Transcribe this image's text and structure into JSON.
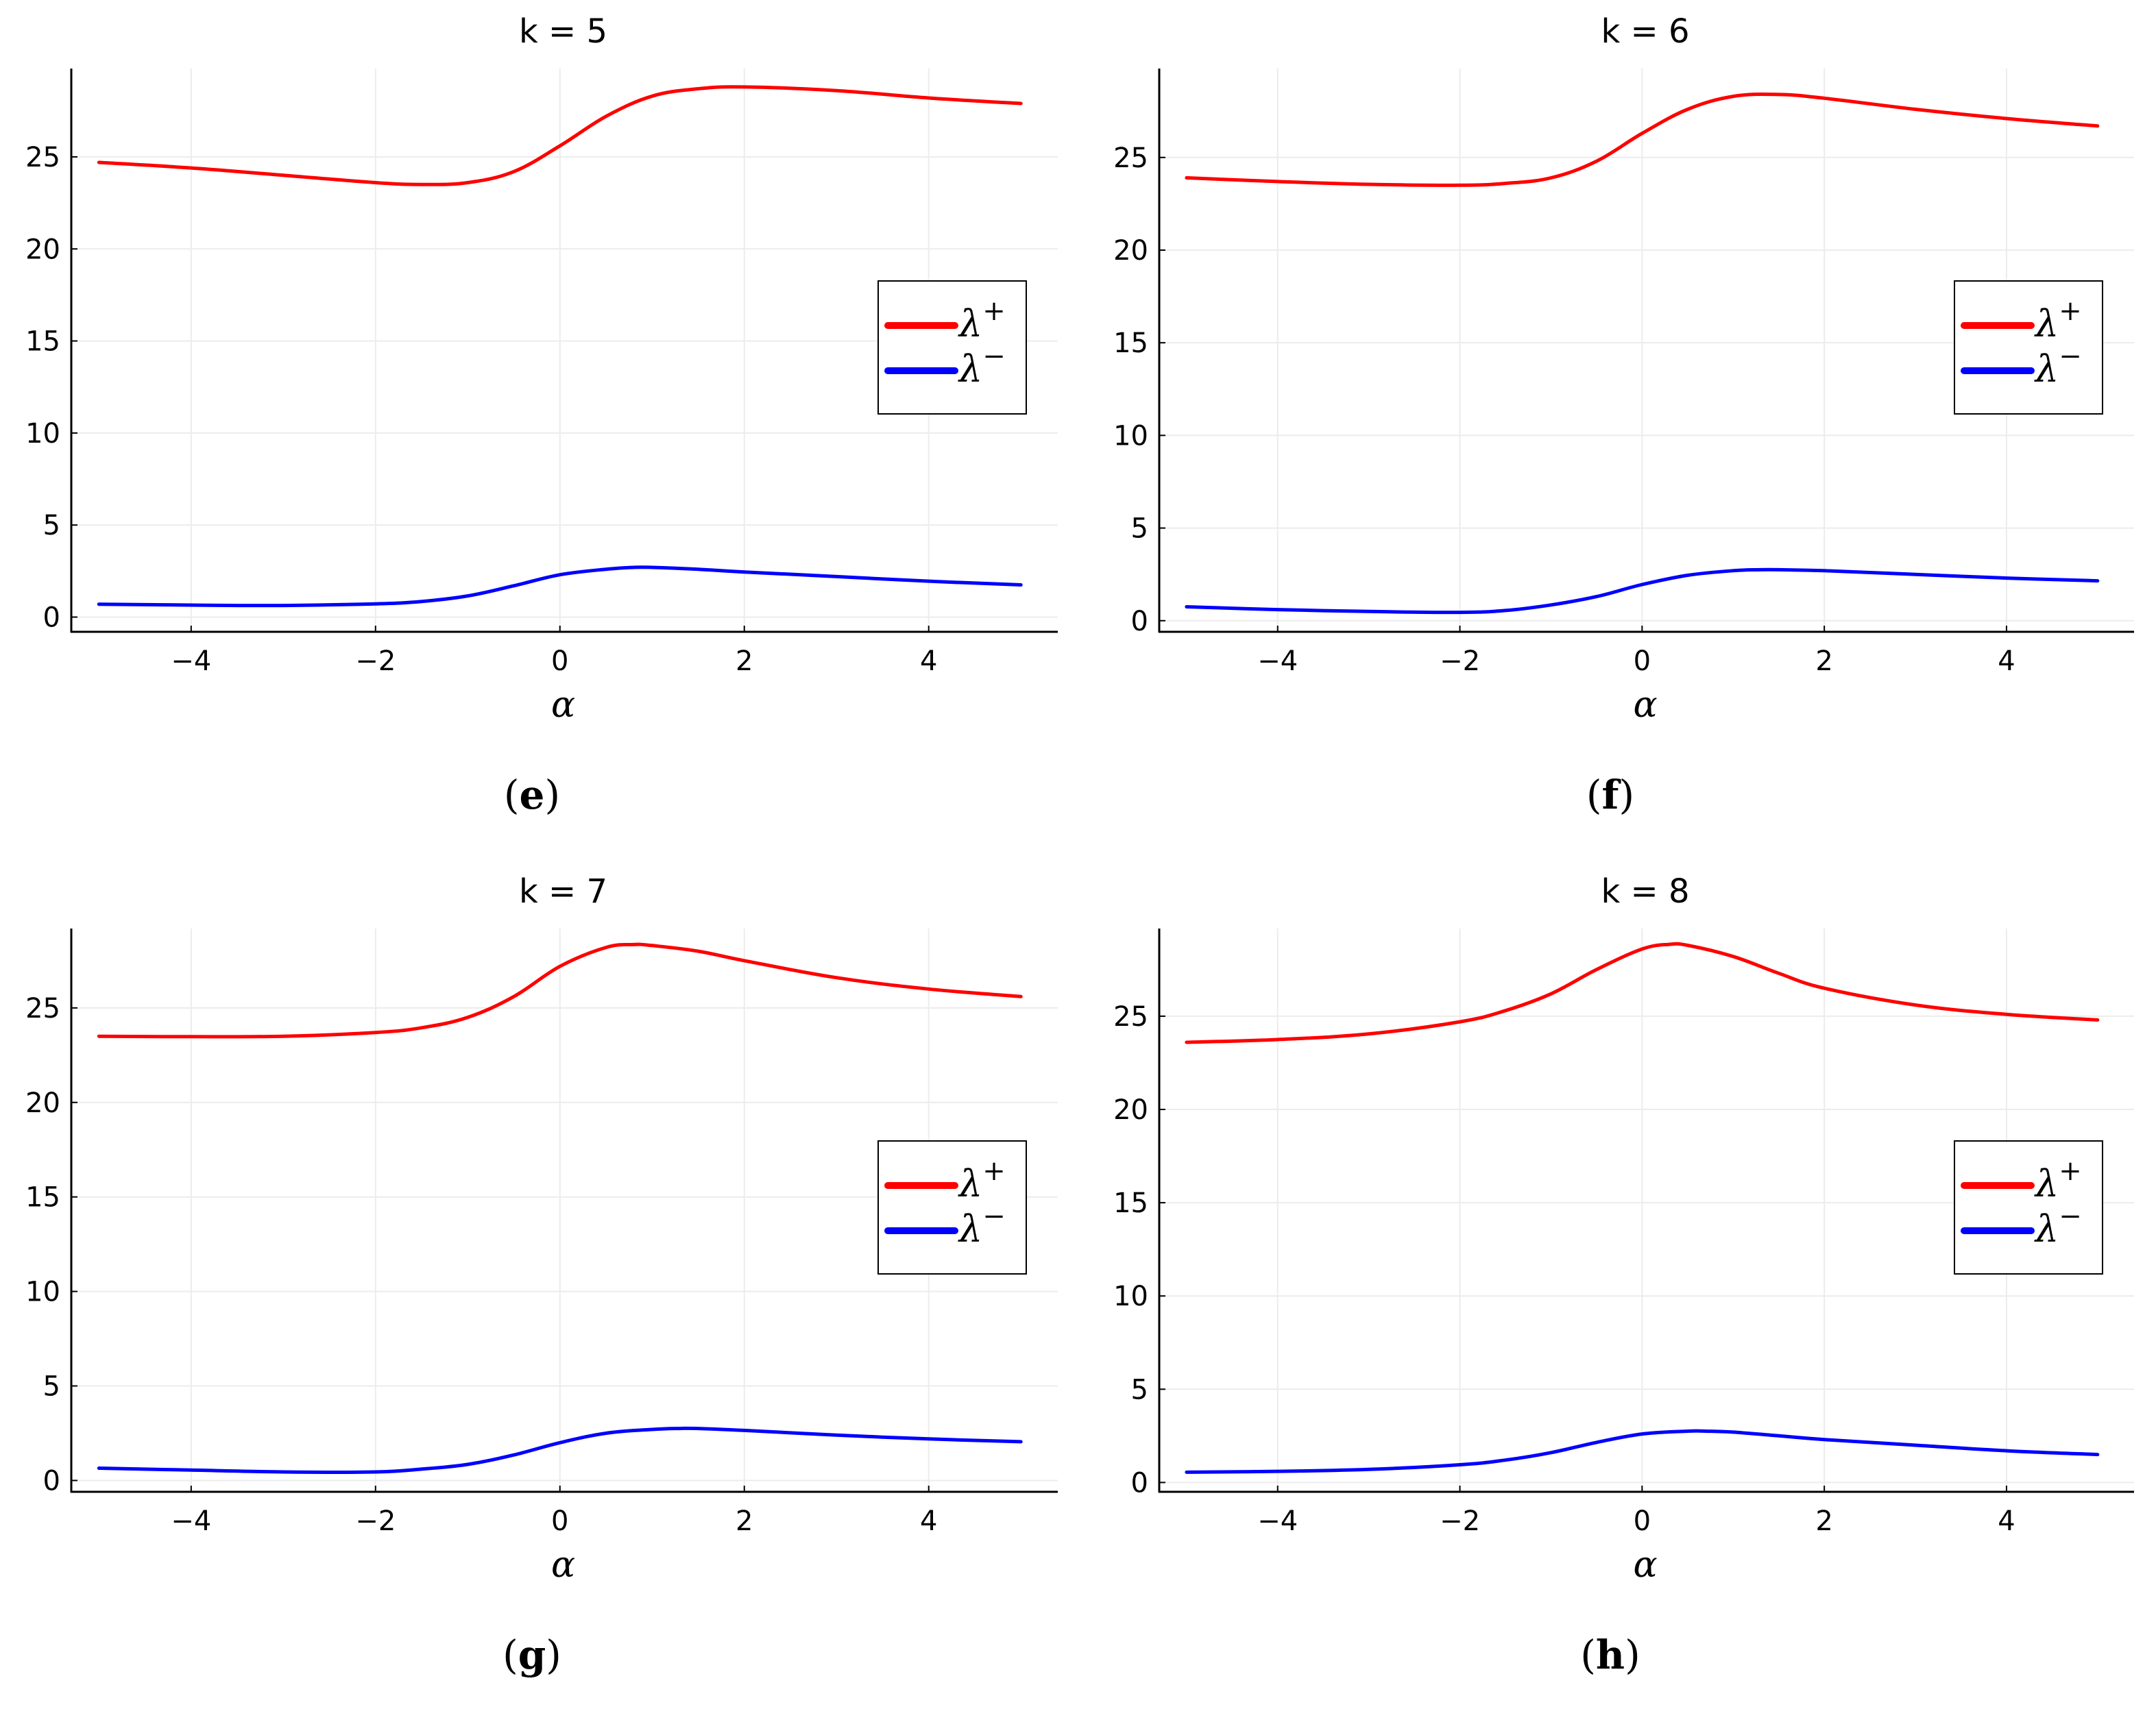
{
  "chart_data": [
    {
      "panel_id": "e",
      "type": "line",
      "title": "k = 5",
      "caption": "e",
      "xlabel": "α",
      "ylabel": "",
      "xlim": [
        -5.3,
        5.4
      ],
      "ylim": [
        -0.8,
        29.8
      ],
      "xticks": [
        -4,
        -2,
        0,
        2,
        4
      ],
      "xtick_labels": [
        "−4",
        "−2",
        "0",
        "2",
        "4"
      ],
      "yticks": [
        0,
        5,
        10,
        15,
        20,
        25
      ],
      "ytick_labels": [
        "0",
        "5",
        "10",
        "15",
        "20",
        "25"
      ],
      "legend": {
        "position": "right",
        "entries": [
          {
            "name": "λ",
            "sup": "+",
            "color": "#ff0000"
          },
          {
            "name": "λ",
            "sup": "−",
            "color": "#0000ff"
          }
        ]
      },
      "series": [
        {
          "name": "λ+",
          "color": "#ff0000",
          "x": [
            -5,
            -4,
            -3,
            -2,
            -1.5,
            -1,
            -0.5,
            0,
            0.5,
            1,
            1.5,
            2,
            3,
            4,
            5
          ],
          "y": [
            24.7,
            24.4,
            24.0,
            23.6,
            23.5,
            23.6,
            24.2,
            25.6,
            27.2,
            28.3,
            28.7,
            28.8,
            28.6,
            28.2,
            27.9
          ]
        },
        {
          "name": "λ−",
          "color": "#0000ff",
          "x": [
            -5,
            -4,
            -3,
            -2,
            -1.5,
            -1,
            -0.5,
            0,
            0.5,
            0.8,
            1,
            1.5,
            2,
            3,
            4,
            5
          ],
          "y": [
            0.7,
            0.65,
            0.63,
            0.72,
            0.85,
            1.15,
            1.7,
            2.3,
            2.6,
            2.7,
            2.7,
            2.6,
            2.45,
            2.2,
            1.95,
            1.75
          ]
        }
      ]
    },
    {
      "panel_id": "f",
      "type": "line",
      "title": "k = 6",
      "caption": "f",
      "xlabel": "α",
      "ylabel": "",
      "xlim": [
        -5.3,
        5.4
      ],
      "ylim": [
        -0.6,
        29.8
      ],
      "xticks": [
        -4,
        -2,
        0,
        2,
        4
      ],
      "xtick_labels": [
        "−4",
        "−2",
        "0",
        "2",
        "4"
      ],
      "yticks": [
        0,
        5,
        10,
        15,
        20,
        25
      ],
      "ytick_labels": [
        "0",
        "5",
        "10",
        "15",
        "20",
        "25"
      ],
      "legend": {
        "position": "right",
        "entries": [
          {
            "name": "λ",
            "sup": "+",
            "color": "#ff0000"
          },
          {
            "name": "λ",
            "sup": "−",
            "color": "#0000ff"
          }
        ]
      },
      "series": [
        {
          "name": "λ+",
          "color": "#ff0000",
          "x": [
            -5,
            -4,
            -3,
            -2,
            -1.5,
            -1,
            -0.5,
            0,
            0.5,
            1,
            1.5,
            2,
            3,
            4,
            5
          ],
          "y": [
            23.9,
            23.7,
            23.55,
            23.5,
            23.6,
            23.9,
            24.8,
            26.3,
            27.6,
            28.3,
            28.4,
            28.2,
            27.6,
            27.1,
            26.7
          ]
        },
        {
          "name": "λ−",
          "color": "#0000ff",
          "x": [
            -5,
            -4,
            -3,
            -2,
            -1.5,
            -1,
            -0.5,
            0,
            0.5,
            1,
            1.3,
            1.5,
            2,
            3,
            4,
            5
          ],
          "y": [
            0.75,
            0.6,
            0.5,
            0.45,
            0.55,
            0.85,
            1.3,
            1.95,
            2.45,
            2.7,
            2.75,
            2.75,
            2.7,
            2.5,
            2.3,
            2.15
          ]
        }
      ]
    },
    {
      "panel_id": "g",
      "type": "line",
      "title": "k = 7",
      "caption": "g",
      "xlabel": "α",
      "ylabel": "",
      "xlim": [
        -5.3,
        5.4
      ],
      "ylim": [
        -0.6,
        29.2
      ],
      "xticks": [
        -4,
        -2,
        0,
        2,
        4
      ],
      "xtick_labels": [
        "−4",
        "−2",
        "0",
        "2",
        "4"
      ],
      "yticks": [
        0,
        5,
        10,
        15,
        20,
        25
      ],
      "ytick_labels": [
        "0",
        "5",
        "10",
        "15",
        "20",
        "25"
      ],
      "legend": {
        "position": "right",
        "entries": [
          {
            "name": "λ",
            "sup": "+",
            "color": "#ff0000"
          },
          {
            "name": "λ",
            "sup": "−",
            "color": "#0000ff"
          }
        ]
      },
      "series": [
        {
          "name": "λ+",
          "color": "#ff0000",
          "x": [
            -5,
            -4,
            -3,
            -2,
            -1.5,
            -1,
            -0.5,
            0,
            0.5,
            0.8,
            1,
            1.5,
            2,
            3,
            4,
            5
          ],
          "y": [
            23.5,
            23.48,
            23.5,
            23.7,
            23.95,
            24.5,
            25.6,
            27.2,
            28.2,
            28.35,
            28.3,
            28.0,
            27.5,
            26.6,
            26.0,
            25.6
          ]
        },
        {
          "name": "λ−",
          "color": "#0000ff",
          "x": [
            -5,
            -4,
            -3,
            -2,
            -1.5,
            -1,
            -0.5,
            0,
            0.5,
            1,
            1.3,
            1.5,
            2,
            3,
            4,
            5
          ],
          "y": [
            0.65,
            0.55,
            0.45,
            0.45,
            0.6,
            0.85,
            1.35,
            2.0,
            2.5,
            2.7,
            2.75,
            2.75,
            2.65,
            2.4,
            2.2,
            2.05
          ]
        }
      ]
    },
    {
      "panel_id": "h",
      "type": "line",
      "title": "k = 8",
      "caption": "h",
      "xlabel": "α",
      "ylabel": "",
      "xlim": [
        -5.3,
        5.4
      ],
      "ylim": [
        -0.5,
        29.7
      ],
      "xticks": [
        -4,
        -2,
        0,
        2,
        4
      ],
      "xtick_labels": [
        "−4",
        "−2",
        "0",
        "2",
        "4"
      ],
      "yticks": [
        0,
        5,
        10,
        15,
        20,
        25
      ],
      "ytick_labels": [
        "0",
        "5",
        "10",
        "15",
        "20",
        "25"
      ],
      "legend": {
        "position": "right",
        "entries": [
          {
            "name": "λ",
            "sup": "+",
            "color": "#ff0000"
          },
          {
            "name": "λ",
            "sup": "−",
            "color": "#0000ff"
          }
        ]
      },
      "series": [
        {
          "name": "λ+",
          "color": "#ff0000",
          "x": [
            -5,
            -4,
            -3,
            -2,
            -1.5,
            -1,
            -0.5,
            0,
            0.3,
            0.5,
            1,
            1.5,
            2,
            3,
            4,
            5
          ],
          "y": [
            23.6,
            23.75,
            24.05,
            24.7,
            25.3,
            26.2,
            27.5,
            28.6,
            28.85,
            28.8,
            28.2,
            27.3,
            26.5,
            25.6,
            25.1,
            24.8
          ]
        },
        {
          "name": "λ−",
          "color": "#0000ff",
          "x": [
            -5,
            -4,
            -3,
            -2,
            -1.5,
            -1,
            -0.5,
            0,
            0.5,
            0.7,
            1,
            1.5,
            2,
            3,
            4,
            5
          ],
          "y": [
            0.55,
            0.6,
            0.7,
            0.95,
            1.2,
            1.6,
            2.15,
            2.6,
            2.75,
            2.75,
            2.7,
            2.5,
            2.3,
            2.0,
            1.7,
            1.5
          ]
        }
      ]
    }
  ]
}
